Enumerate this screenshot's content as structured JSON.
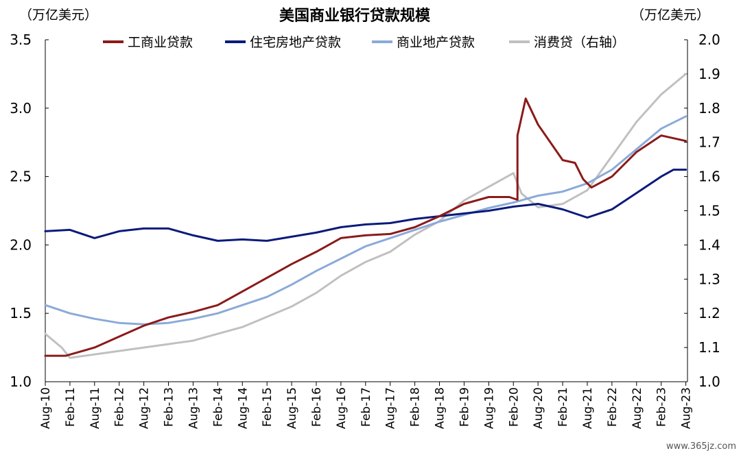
{
  "chart_data": {
    "type": "line",
    "title": "美国商业银行贷款规模",
    "left_unit": "（万亿美元）",
    "right_unit": "（万亿美元）",
    "watermark": "www.365jz.com",
    "y_left": {
      "lim": [
        1.0,
        3.5
      ],
      "ticks": [
        "1.0",
        "1.5",
        "2.0",
        "2.5",
        "3.0",
        "3.5"
      ]
    },
    "y_right": {
      "lim": [
        1.0,
        2.0
      ],
      "ticks": [
        "1.0",
        "1.1",
        "1.2",
        "1.3",
        "1.4",
        "1.5",
        "1.6",
        "1.7",
        "1.8",
        "1.9",
        "2.0"
      ]
    },
    "x_ticks": [
      "Aug-10",
      "Feb-11",
      "Aug-11",
      "Feb-12",
      "Aug-12",
      "Feb-13",
      "Aug-13",
      "Feb-14",
      "Aug-14",
      "Feb-15",
      "Aug-15",
      "Feb-16",
      "Aug-16",
      "Feb-17",
      "Aug-17",
      "Feb-18",
      "Aug-18",
      "Feb-19",
      "Aug-19",
      "Feb-20",
      "Aug-20",
      "Feb-21",
      "Aug-21",
      "Feb-22",
      "Aug-22",
      "Feb-23",
      "Aug-23"
    ],
    "series": [
      {
        "name": "工商业贷款",
        "axis": "left",
        "color": "#8b1a1a",
        "points": [
          [
            "2010-08",
            1.19
          ],
          [
            "2011-01",
            1.19
          ],
          [
            "2011-08",
            1.25
          ],
          [
            "2012-02",
            1.33
          ],
          [
            "2012-08",
            1.41
          ],
          [
            "2013-02",
            1.47
          ],
          [
            "2013-08",
            1.51
          ],
          [
            "2014-02",
            1.56
          ],
          [
            "2014-08",
            1.66
          ],
          [
            "2015-02",
            1.76
          ],
          [
            "2015-08",
            1.86
          ],
          [
            "2016-02",
            1.95
          ],
          [
            "2016-08",
            2.05
          ],
          [
            "2017-02",
            2.07
          ],
          [
            "2017-08",
            2.08
          ],
          [
            "2018-02",
            2.13
          ],
          [
            "2018-08",
            2.21
          ],
          [
            "2019-02",
            2.3
          ],
          [
            "2019-08",
            2.35
          ],
          [
            "2020-01",
            2.35
          ],
          [
            "2020-03",
            2.33
          ],
          [
            "2020-03",
            2.8
          ],
          [
            "2020-05",
            3.07
          ],
          [
            "2020-08",
            2.88
          ],
          [
            "2021-02",
            2.62
          ],
          [
            "2021-05",
            2.6
          ],
          [
            "2021-07",
            2.48
          ],
          [
            "2021-09",
            2.42
          ],
          [
            "2022-02",
            2.5
          ],
          [
            "2022-08",
            2.68
          ],
          [
            "2023-02",
            2.8
          ],
          [
            "2023-05",
            2.78
          ],
          [
            "2023-08",
            2.76
          ]
        ]
      },
      {
        "name": "住宅房地产贷款",
        "axis": "left",
        "color": "#0a1a7a",
        "points": [
          [
            "2010-08",
            2.1
          ],
          [
            "2011-02",
            2.11
          ],
          [
            "2011-08",
            2.05
          ],
          [
            "2012-02",
            2.1
          ],
          [
            "2012-08",
            2.12
          ],
          [
            "2013-02",
            2.12
          ],
          [
            "2013-08",
            2.07
          ],
          [
            "2014-02",
            2.03
          ],
          [
            "2014-08",
            2.04
          ],
          [
            "2015-02",
            2.03
          ],
          [
            "2015-08",
            2.06
          ],
          [
            "2016-02",
            2.09
          ],
          [
            "2016-08",
            2.13
          ],
          [
            "2017-02",
            2.15
          ],
          [
            "2017-08",
            2.16
          ],
          [
            "2018-02",
            2.19
          ],
          [
            "2018-08",
            2.21
          ],
          [
            "2019-02",
            2.23
          ],
          [
            "2019-08",
            2.25
          ],
          [
            "2020-02",
            2.28
          ],
          [
            "2020-08",
            2.3
          ],
          [
            "2021-02",
            2.26
          ],
          [
            "2021-08",
            2.2
          ],
          [
            "2022-02",
            2.26
          ],
          [
            "2022-08",
            2.38
          ],
          [
            "2023-02",
            2.5
          ],
          [
            "2023-05",
            2.55
          ],
          [
            "2023-08",
            2.55
          ]
        ]
      },
      {
        "name": "商业地产贷款",
        "axis": "left",
        "color": "#8aaad8",
        "points": [
          [
            "2010-08",
            1.56
          ],
          [
            "2011-02",
            1.5
          ],
          [
            "2011-08",
            1.46
          ],
          [
            "2012-02",
            1.43
          ],
          [
            "2012-08",
            1.42
          ],
          [
            "2013-02",
            1.43
          ],
          [
            "2013-08",
            1.46
          ],
          [
            "2014-02",
            1.5
          ],
          [
            "2014-08",
            1.56
          ],
          [
            "2015-02",
            1.62
          ],
          [
            "2015-08",
            1.71
          ],
          [
            "2016-02",
            1.81
          ],
          [
            "2016-08",
            1.9
          ],
          [
            "2017-02",
            1.99
          ],
          [
            "2017-08",
            2.05
          ],
          [
            "2018-02",
            2.11
          ],
          [
            "2018-08",
            2.17
          ],
          [
            "2019-02",
            2.22
          ],
          [
            "2019-08",
            2.27
          ],
          [
            "2020-02",
            2.31
          ],
          [
            "2020-08",
            2.36
          ],
          [
            "2021-02",
            2.39
          ],
          [
            "2021-08",
            2.45
          ],
          [
            "2022-02",
            2.55
          ],
          [
            "2022-08",
            2.7
          ],
          [
            "2023-02",
            2.85
          ],
          [
            "2023-08",
            2.94
          ]
        ]
      },
      {
        "name": "消费贷（右轴）",
        "axis": "right",
        "color": "#c0c0c0",
        "points": [
          [
            "2010-08",
            1.14
          ],
          [
            "2010-12",
            1.1
          ],
          [
            "2011-02",
            1.07
          ],
          [
            "2011-08",
            1.08
          ],
          [
            "2012-02",
            1.09
          ],
          [
            "2012-08",
            1.1
          ],
          [
            "2013-02",
            1.11
          ],
          [
            "2013-08",
            1.12
          ],
          [
            "2014-02",
            1.14
          ],
          [
            "2014-08",
            1.16
          ],
          [
            "2015-02",
            1.19
          ],
          [
            "2015-08",
            1.22
          ],
          [
            "2016-02",
            1.26
          ],
          [
            "2016-08",
            1.31
          ],
          [
            "2017-02",
            1.35
          ],
          [
            "2017-08",
            1.38
          ],
          [
            "2018-02",
            1.43
          ],
          [
            "2018-08",
            1.47
          ],
          [
            "2019-02",
            1.53
          ],
          [
            "2019-08",
            1.57
          ],
          [
            "2020-02",
            1.61
          ],
          [
            "2020-04",
            1.55
          ],
          [
            "2020-08",
            1.51
          ],
          [
            "2021-02",
            1.52
          ],
          [
            "2021-08",
            1.56
          ],
          [
            "2022-02",
            1.66
          ],
          [
            "2022-08",
            1.76
          ],
          [
            "2023-02",
            1.84
          ],
          [
            "2023-08",
            1.9
          ]
        ]
      }
    ]
  }
}
